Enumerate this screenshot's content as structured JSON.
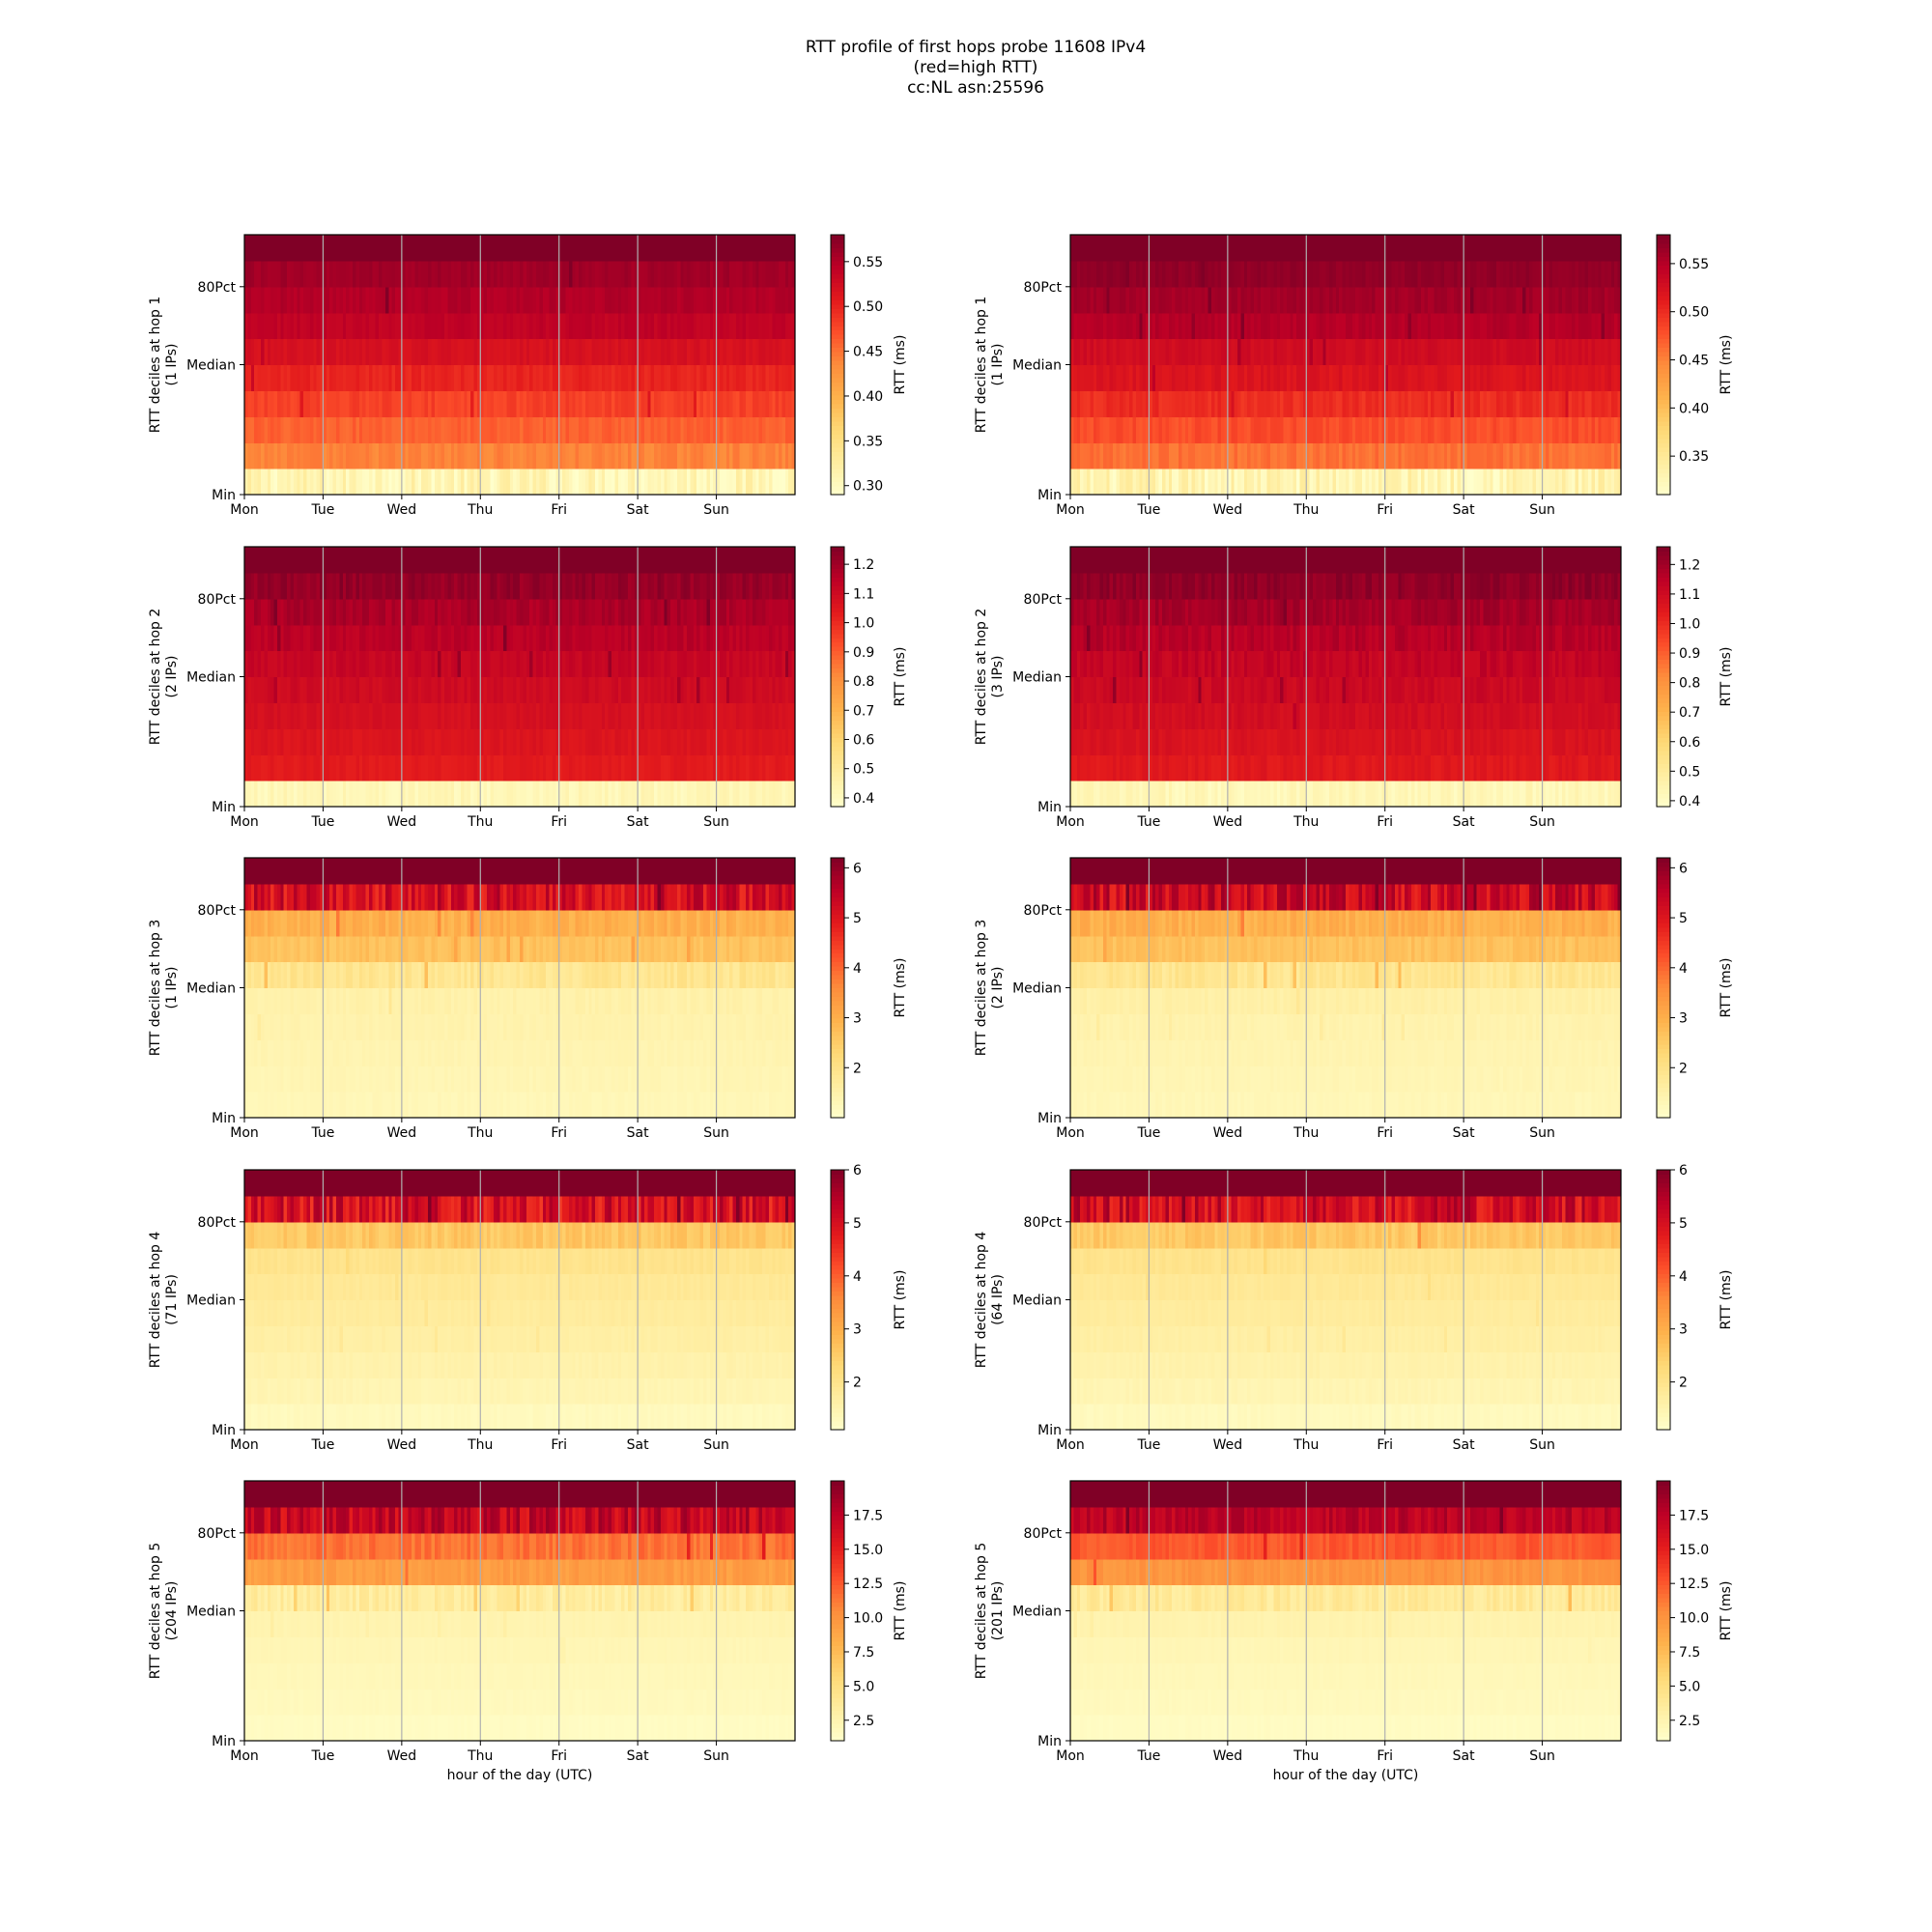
{
  "figure": {
    "title_lines": [
      "RTT profile of first hops probe 11608 IPv4",
      "(red=high RTT)",
      "cc:NL asn:25596"
    ]
  },
  "colormap": {
    "name": "YlOrRd",
    "stops": [
      "#ffffcc",
      "#ffeda0",
      "#fed976",
      "#feb24c",
      "#fd8d3c",
      "#fc4e2a",
      "#e31a1c",
      "#bd0026",
      "#800026"
    ]
  },
  "chart_data": [
    {
      "type": "heatmap",
      "hop": 1,
      "column": "left",
      "ylabel": "RTT deciles at hop 1",
      "ylabel2": "(1 IPs)",
      "xlabel": "",
      "x_ticks": [
        "Mon",
        "Tue",
        "Wed",
        "Thu",
        "Fri",
        "Sat",
        "Sun"
      ],
      "y_ticks": [
        "Min",
        "Median",
        "80Pct"
      ],
      "colorbar_label": "RTT (ms)",
      "colorbar_range": [
        0.29,
        0.58
      ],
      "colorbar_ticks": [
        "0.30",
        "0.35",
        "0.40",
        "0.45",
        "0.50",
        "0.55"
      ],
      "decile_rtt_ms": [
        0.31,
        0.44,
        0.46,
        0.48,
        0.5,
        0.52,
        0.54,
        0.55,
        0.56,
        0.6
      ],
      "row_noise": [
        0.02,
        0.008,
        0.008,
        0.008,
        0.007,
        0.006,
        0.006,
        0.006,
        0.006,
        0.0
      ]
    },
    {
      "type": "heatmap",
      "hop": 1,
      "column": "right",
      "ylabel": "RTT deciles at hop 1",
      "ylabel2": "(1 IPs)",
      "xlabel": "",
      "x_ticks": [
        "Mon",
        "Tue",
        "Wed",
        "Thu",
        "Fri",
        "Sat",
        "Sun"
      ],
      "y_ticks": [
        "Min",
        "Median",
        "80Pct"
      ],
      "colorbar_label": "RTT (ms)",
      "colorbar_range": [
        0.31,
        0.58
      ],
      "colorbar_ticks": [
        "0.35",
        "0.40",
        "0.45",
        "0.50",
        "0.55"
      ],
      "decile_rtt_ms": [
        0.33,
        0.46,
        0.48,
        0.5,
        0.52,
        0.53,
        0.55,
        0.56,
        0.57,
        0.6
      ],
      "row_noise": [
        0.02,
        0.008,
        0.008,
        0.008,
        0.007,
        0.006,
        0.006,
        0.006,
        0.005,
        0.0
      ]
    },
    {
      "type": "heatmap",
      "hop": 2,
      "column": "left",
      "ylabel": "RTT deciles at hop 2",
      "ylabel2": "(2 IPs)",
      "xlabel": "",
      "x_ticks": [
        "Mon",
        "Tue",
        "Wed",
        "Thu",
        "Fri",
        "Sat",
        "Sun"
      ],
      "y_ticks": [
        "Min",
        "Median",
        "80Pct"
      ],
      "colorbar_label": "RTT (ms)",
      "colorbar_range": [
        0.37,
        1.26
      ],
      "colorbar_ticks": [
        "0.4",
        "0.5",
        "0.6",
        "0.7",
        "0.8",
        "0.9",
        "1.0",
        "1.1",
        "1.2"
      ],
      "decile_rtt_ms": [
        0.42,
        1.04,
        1.06,
        1.08,
        1.1,
        1.12,
        1.15,
        1.18,
        1.22,
        1.3
      ],
      "row_noise": [
        0.03,
        0.015,
        0.015,
        0.015,
        0.02,
        0.02,
        0.025,
        0.03,
        0.03,
        0.0
      ]
    },
    {
      "type": "heatmap",
      "hop": 2,
      "column": "right",
      "ylabel": "RTT deciles at hop 2",
      "ylabel2": "(3 IPs)",
      "xlabel": "",
      "x_ticks": [
        "Mon",
        "Tue",
        "Wed",
        "Thu",
        "Fri",
        "Sat",
        "Sun"
      ],
      "y_ticks": [
        "Min",
        "Median",
        "80Pct"
      ],
      "colorbar_label": "RTT (ms)",
      "colorbar_range": [
        0.38,
        1.26
      ],
      "colorbar_ticks": [
        "0.4",
        "0.5",
        "0.6",
        "0.7",
        "0.8",
        "0.9",
        "1.0",
        "1.1",
        "1.2"
      ],
      "decile_rtt_ms": [
        0.43,
        1.05,
        1.07,
        1.09,
        1.11,
        1.13,
        1.16,
        1.19,
        1.23,
        1.3
      ],
      "row_noise": [
        0.03,
        0.02,
        0.02,
        0.02,
        0.025,
        0.03,
        0.03,
        0.03,
        0.03,
        0.0
      ]
    },
    {
      "type": "heatmap",
      "hop": 3,
      "column": "left",
      "ylabel": "RTT deciles at hop 3",
      "ylabel2": "(1 IPs)",
      "xlabel": "",
      "x_ticks": [
        "Mon",
        "Tue",
        "Wed",
        "Thu",
        "Fri",
        "Sat",
        "Sun"
      ],
      "y_ticks": [
        "Min",
        "Median",
        "80Pct"
      ],
      "colorbar_label": "RTT (ms)",
      "colorbar_range": [
        1.0,
        6.2
      ],
      "colorbar_ticks": [
        "2",
        "3",
        "4",
        "5",
        "6"
      ],
      "decile_rtt_ms": [
        1.3,
        1.35,
        1.4,
        1.45,
        1.5,
        1.9,
        2.7,
        3.0,
        5.2,
        6.5
      ],
      "row_noise": [
        0.05,
        0.05,
        0.05,
        0.05,
        0.08,
        0.2,
        0.15,
        0.2,
        0.6,
        0.0
      ]
    },
    {
      "type": "heatmap",
      "hop": 3,
      "column": "right",
      "ylabel": "RTT deciles at hop 3",
      "ylabel2": "(2 IPs)",
      "xlabel": "",
      "x_ticks": [
        "Mon",
        "Tue",
        "Wed",
        "Thu",
        "Fri",
        "Sat",
        "Sun"
      ],
      "y_ticks": [
        "Min",
        "Median",
        "80Pct"
      ],
      "colorbar_label": "RTT (ms)",
      "colorbar_range": [
        1.0,
        6.2
      ],
      "colorbar_ticks": [
        "2",
        "3",
        "4",
        "5",
        "6"
      ],
      "decile_rtt_ms": [
        1.3,
        1.35,
        1.4,
        1.45,
        1.55,
        1.9,
        2.7,
        3.0,
        5.3,
        6.5
      ],
      "row_noise": [
        0.05,
        0.05,
        0.05,
        0.06,
        0.08,
        0.2,
        0.15,
        0.2,
        0.6,
        0.0
      ]
    },
    {
      "type": "heatmap",
      "hop": 4,
      "column": "left",
      "ylabel": "RTT deciles at hop 4",
      "ylabel2": "(71 IPs)",
      "xlabel": "",
      "x_ticks": [
        "Mon",
        "Tue",
        "Wed",
        "Thu",
        "Fri",
        "Sat",
        "Sun"
      ],
      "y_ticks": [
        "Min",
        "Median",
        "80Pct"
      ],
      "colorbar_label": "RTT (ms)",
      "colorbar_range": [
        1.1,
        6.0
      ],
      "colorbar_ticks": [
        "2",
        "3",
        "4",
        "5",
        "6"
      ],
      "decile_rtt_ms": [
        1.3,
        1.45,
        1.55,
        1.65,
        1.75,
        1.85,
        2.0,
        2.6,
        5.0,
        6.5
      ],
      "row_noise": [
        0.05,
        0.05,
        0.05,
        0.05,
        0.05,
        0.06,
        0.08,
        0.2,
        0.6,
        0.0
      ]
    },
    {
      "type": "heatmap",
      "hop": 4,
      "column": "right",
      "ylabel": "RTT deciles at hop 4",
      "ylabel2": "(64 IPs)",
      "xlabel": "",
      "x_ticks": [
        "Mon",
        "Tue",
        "Wed",
        "Thu",
        "Fri",
        "Sat",
        "Sun"
      ],
      "y_ticks": [
        "Min",
        "Median",
        "80Pct"
      ],
      "colorbar_label": "RTT (ms)",
      "colorbar_range": [
        1.1,
        6.0
      ],
      "colorbar_ticks": [
        "2",
        "3",
        "4",
        "5",
        "6"
      ],
      "decile_rtt_ms": [
        1.3,
        1.45,
        1.55,
        1.65,
        1.75,
        1.85,
        2.0,
        2.6,
        5.1,
        6.5
      ],
      "row_noise": [
        0.05,
        0.05,
        0.05,
        0.05,
        0.05,
        0.06,
        0.08,
        0.2,
        0.6,
        0.0
      ]
    },
    {
      "type": "heatmap",
      "hop": 5,
      "column": "left",
      "ylabel": "RTT deciles at hop 5",
      "ylabel2": "(204 IPs)",
      "xlabel": "hour of the day (UTC)",
      "x_ticks": [
        "Mon",
        "Tue",
        "Wed",
        "Thu",
        "Fri",
        "Sat",
        "Sun"
      ],
      "y_ticks": [
        "Min",
        "Median",
        "80Pct"
      ],
      "colorbar_label": "RTT (ms)",
      "colorbar_range": [
        1.0,
        20.0
      ],
      "colorbar_ticks": [
        "2.5",
        "5.0",
        "7.5",
        "10.0",
        "12.5",
        "15.0",
        "17.5"
      ],
      "decile_rtt_ms": [
        1.5,
        1.8,
        2.0,
        2.2,
        2.5,
        3.5,
        9.5,
        11.5,
        17.0,
        21.0
      ],
      "row_noise": [
        0.1,
        0.1,
        0.1,
        0.1,
        0.15,
        0.8,
        0.6,
        0.8,
        2.0,
        0.0
      ]
    },
    {
      "type": "heatmap",
      "hop": 5,
      "column": "right",
      "ylabel": "RTT deciles at hop 5",
      "ylabel2": "(201 IPs)",
      "xlabel": "hour of the day (UTC)",
      "x_ticks": [
        "Mon",
        "Tue",
        "Wed",
        "Thu",
        "Fri",
        "Sat",
        "Sun"
      ],
      "y_ticks": [
        "Min",
        "Median",
        "80Pct"
      ],
      "colorbar_label": "RTT (ms)",
      "colorbar_range": [
        1.0,
        20.0
      ],
      "colorbar_ticks": [
        "2.5",
        "5.0",
        "7.5",
        "10.0",
        "12.5",
        "15.0",
        "17.5"
      ],
      "decile_rtt_ms": [
        1.5,
        1.8,
        2.0,
        2.2,
        2.6,
        3.8,
        10.0,
        12.5,
        17.5,
        21.0
      ],
      "row_noise": [
        0.1,
        0.1,
        0.1,
        0.1,
        0.15,
        0.8,
        0.6,
        0.6,
        1.2,
        0.0
      ]
    }
  ]
}
